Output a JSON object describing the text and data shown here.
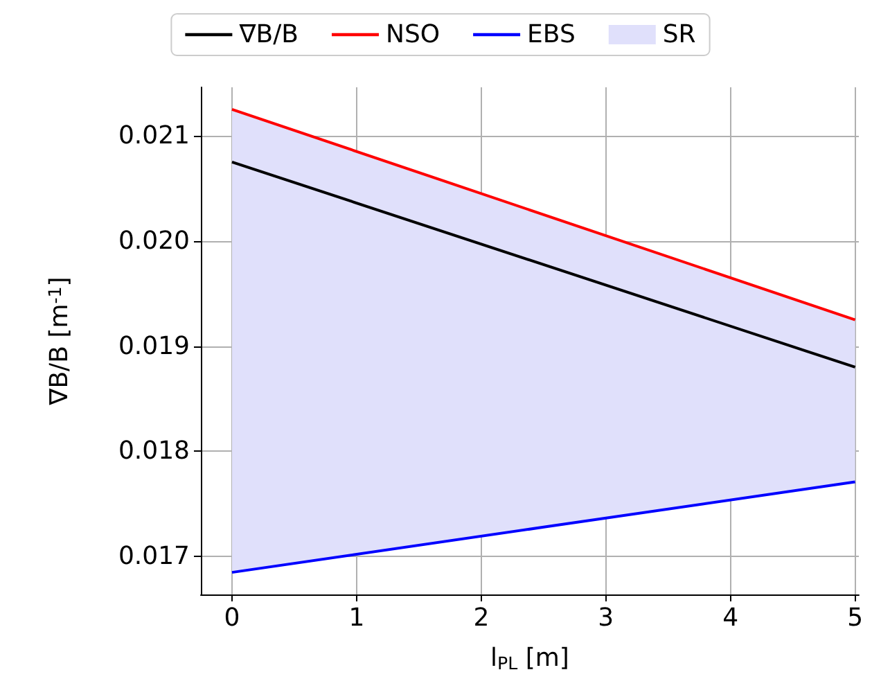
{
  "chart_data": {
    "type": "line",
    "xlabel": "l$_{PL}$ [m]",
    "ylabel": "∇B/B [m$^{-1}$]",
    "x": [
      0,
      5
    ],
    "series": [
      {
        "name": "∇B/B",
        "color": "#000000",
        "values": [
          0.02075,
          0.0188
        ]
      },
      {
        "name": "NSO",
        "color": "#ff0000",
        "values": [
          0.02125,
          0.01925
        ]
      },
      {
        "name": "EBS",
        "color": "#0000ff",
        "values": [
          0.01685,
          0.01771
        ]
      },
      {
        "name": "SR",
        "type": "area",
        "color": "#e0e0fb",
        "values": [
          null,
          null
        ],
        "lower": [
          0.01685,
          0.01771
        ],
        "upper": [
          0.02125,
          0.01925
        ]
      }
    ],
    "xlim": [
      -0.25,
      5.03
    ],
    "xticks": [
      0,
      1,
      2,
      3,
      4,
      5
    ],
    "ylim": [
      0.01664,
      0.02146
    ],
    "yticks": [
      {
        "value": 0.017,
        "label": "0.017"
      },
      {
        "value": 0.018,
        "label": "0.018"
      },
      {
        "value": 0.019,
        "label": "0.019"
      },
      {
        "value": 0.02,
        "label": "0.020"
      },
      {
        "value": 0.021,
        "label": "0.021"
      }
    ],
    "grid": true,
    "legend": "top",
    "marker": "none",
    "line_style": "solid"
  }
}
